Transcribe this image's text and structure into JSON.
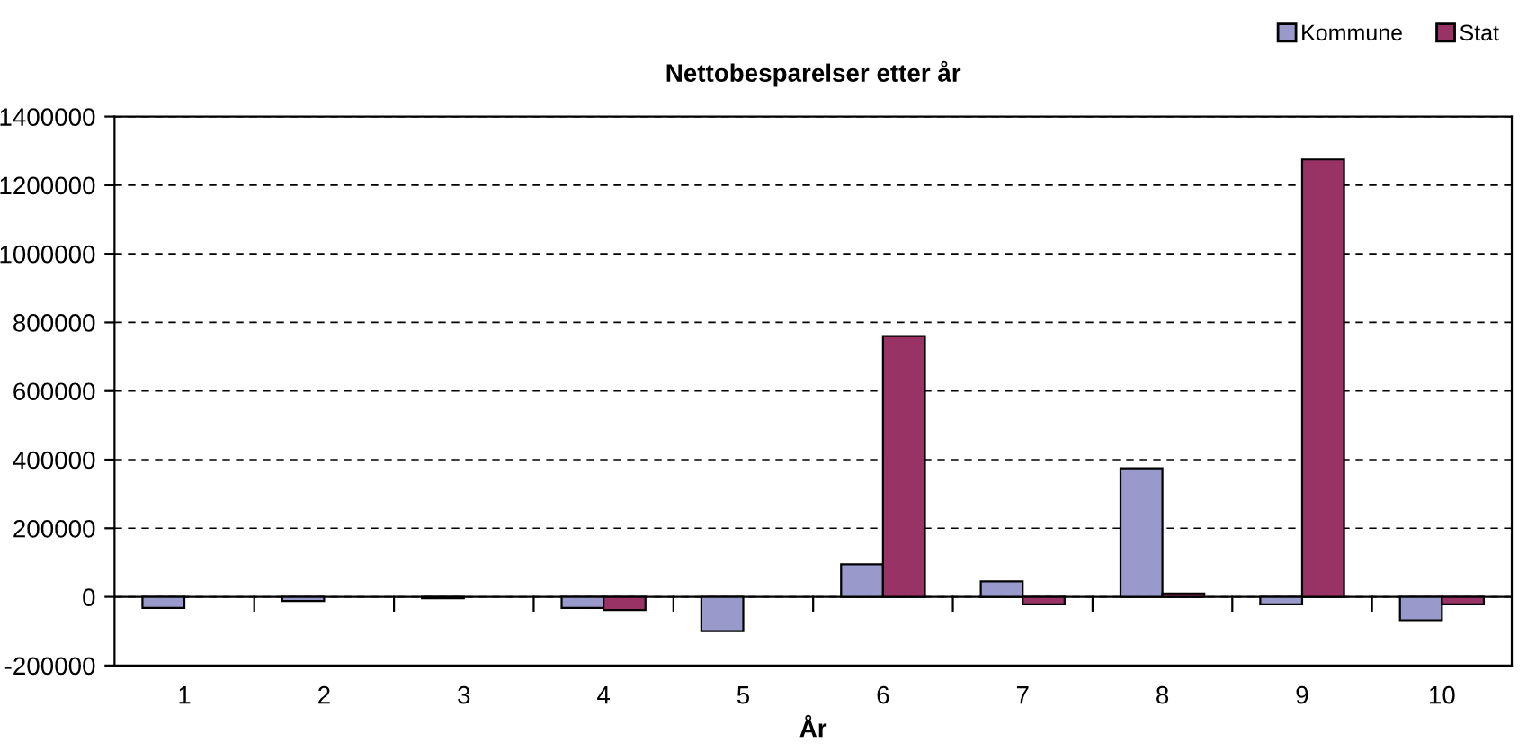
{
  "chart_data": {
    "type": "bar",
    "title": "Nettobesparelser etter år",
    "xlabel": "År",
    "categories": [
      "1",
      "2",
      "3",
      "4",
      "5",
      "6",
      "7",
      "8",
      "9",
      "10"
    ],
    "series": [
      {
        "name": "Kommune",
        "color": "#9999cc",
        "values": [
          -32000,
          -12000,
          -4000,
          -32000,
          -100000,
          95000,
          45000,
          375000,
          -22000,
          -68000
        ]
      },
      {
        "name": "Stat",
        "color": "#993366",
        "values": [
          null,
          null,
          null,
          -38000,
          null,
          760000,
          -22000,
          10000,
          1275000,
          -22000
        ]
      }
    ],
    "ylim": [
      -200000,
      1400000
    ],
    "yticks": [
      -200000,
      0,
      200000,
      400000,
      600000,
      800000,
      1000000,
      1200000,
      1400000
    ],
    "grid": "y",
    "line_style": "dashed",
    "legend": "top right"
  }
}
